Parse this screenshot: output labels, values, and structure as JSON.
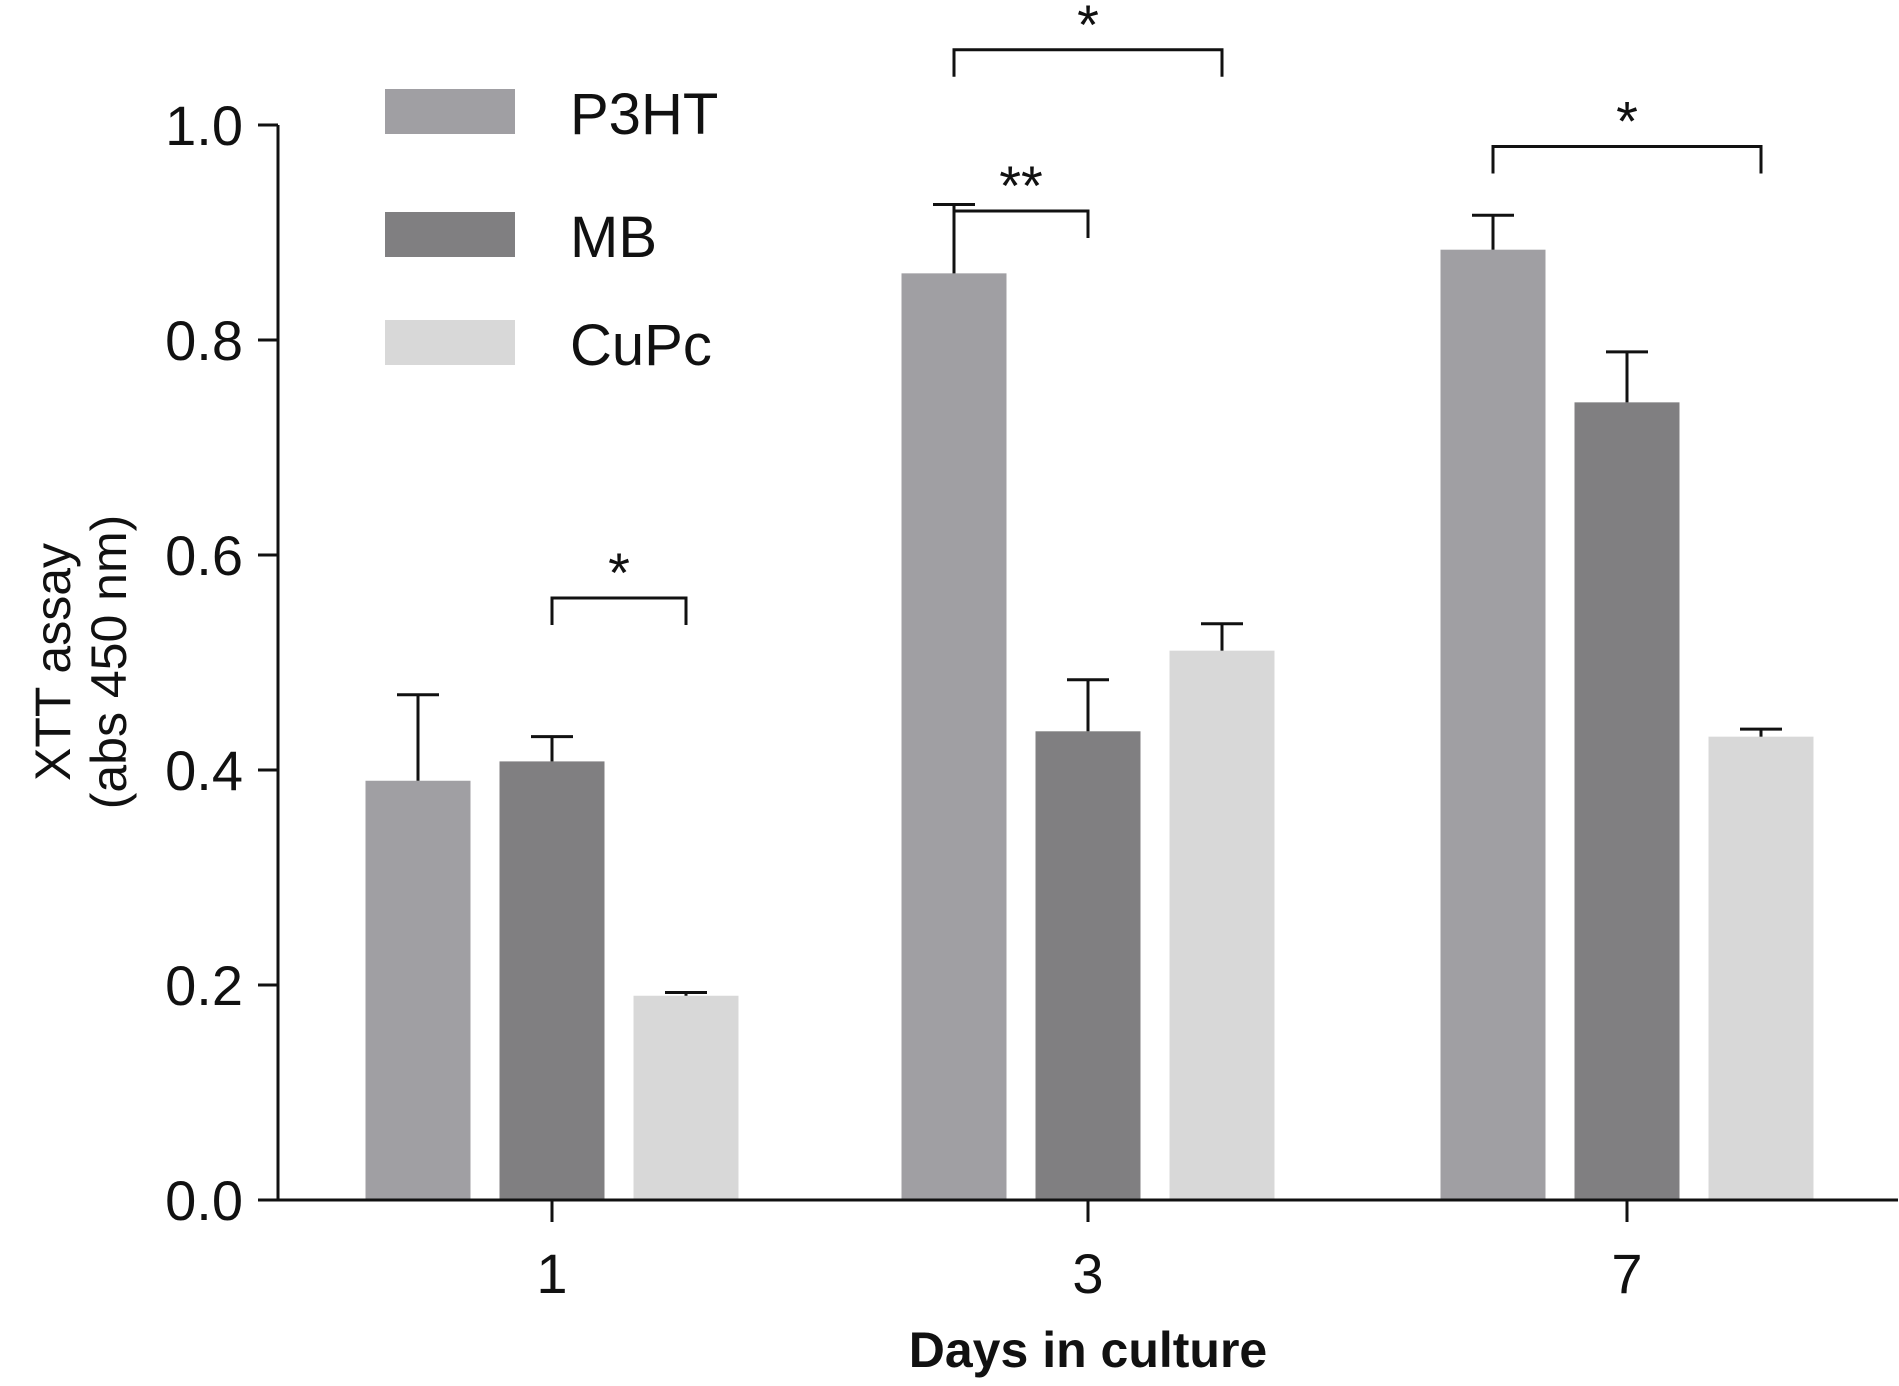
{
  "chart_data": {
    "type": "bar",
    "title": "",
    "xlabel": "Days in culture",
    "ylabel_line1": "XTT assay",
    "ylabel_line2": "(abs 450 nm)",
    "categories": [
      "1",
      "3",
      "7"
    ],
    "ylim": [
      0,
      1.0
    ],
    "yticks": [
      "0.0",
      "0.2",
      "0.4",
      "0.6",
      "0.8",
      "1.0"
    ],
    "legend_position": "top-left",
    "series": [
      {
        "name": "P3HT",
        "color": "#a09fa3",
        "values": [
          0.39,
          0.862,
          0.884
        ],
        "errors": [
          0.08,
          0.064,
          0.032
        ]
      },
      {
        "name": "MB",
        "color": "#807f81",
        "values": [
          0.408,
          0.436,
          0.742
        ],
        "errors": [
          0.023,
          0.048,
          0.047
        ]
      },
      {
        "name": "CuPc",
        "color": "#d8d8d8",
        "values": [
          0.19,
          0.511,
          0.431
        ],
        "errors": [
          0.003,
          0.025,
          0.007
        ]
      }
    ],
    "significance": [
      {
        "category_index": 0,
        "from_series": 1,
        "to_series": 2,
        "label": "*",
        "level": 0.56
      },
      {
        "category_index": 1,
        "from_series": 0,
        "to_series": 1,
        "label": "**",
        "level": 0.92
      },
      {
        "category_index": 1,
        "from_series": 0,
        "to_series": 2,
        "label": "*",
        "level": 1.07
      },
      {
        "category_index": 2,
        "from_series": 0,
        "to_series": 2,
        "label": "*",
        "level": 0.98
      }
    ]
  }
}
